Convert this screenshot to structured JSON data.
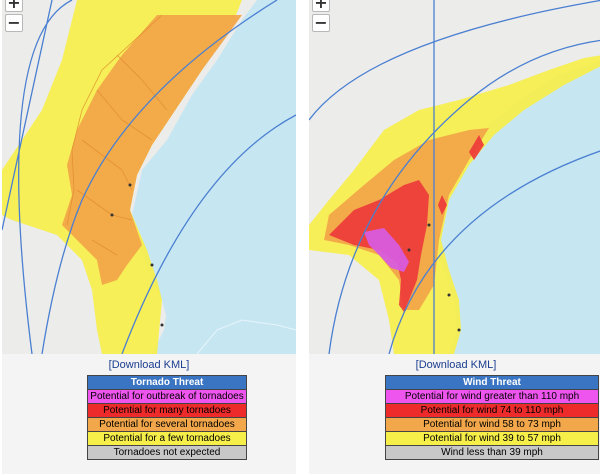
{
  "colors": {
    "ocean": "#c6e6f2",
    "land": "#ececea",
    "yellow": "#f6ef4a",
    "orange": "#f2a74a",
    "red": "#ee3a3a",
    "magenta": "#d75cdc",
    "track": "#4a7fd1",
    "legend_header": "#3a75c4",
    "gray": "#c8c8c8"
  },
  "tornado": {
    "download_label": "[Download KML]",
    "legend_title": "Tornado Threat",
    "legend": [
      {
        "label": "Potential for outbreak of tornadoes",
        "color": "#ee55ee"
      },
      {
        "label": "Potential for many  tornadoes",
        "color": "#ee2b2b"
      },
      {
        "label": "Potential for several tornadoes",
        "color": "#f2a74a"
      },
      {
        "label": "Potential for a few tornadoes",
        "color": "#f6ef4a"
      },
      {
        "label": "Tornadoes not expected",
        "color": "#c8c8c8"
      }
    ]
  },
  "wind": {
    "download_label": "[Download KML]",
    "legend_title": "Wind Threat",
    "legend": [
      {
        "label": "Potential for wind greater than 110 mph",
        "color": "#ee55ee"
      },
      {
        "label": "Potential for wind 74 to 110 mph",
        "color": "#ee2b2b"
      },
      {
        "label": "Potential for wind 58 to 73 mph",
        "color": "#f2a74a"
      },
      {
        "label": "Potential for wind 39 to 57 mph",
        "color": "#f6ef4a"
      },
      {
        "label": "Wind less than 39 mph",
        "color": "#c8c8c8"
      }
    ]
  },
  "zoom": {
    "in": "+",
    "out": "−"
  }
}
